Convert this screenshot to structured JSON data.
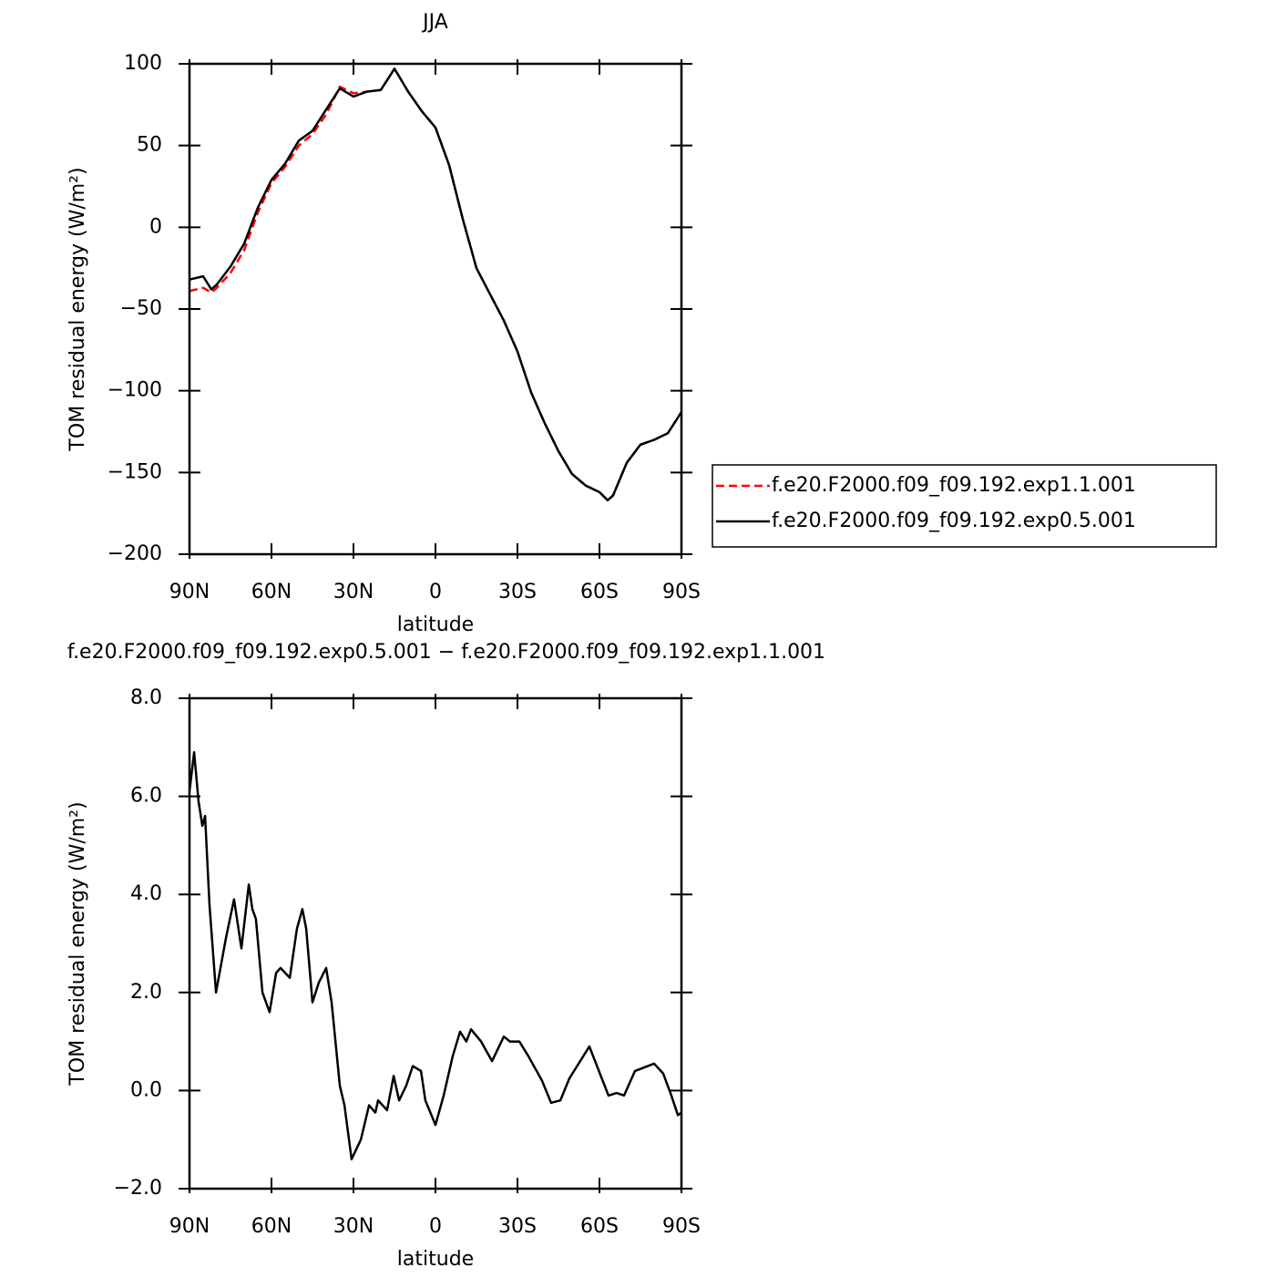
{
  "chart_data": [
    {
      "type": "line",
      "title": "JJA",
      "x_label": "latitude",
      "y_label": "TOM residual energy (W/m²)",
      "x": [
        90,
        85,
        82,
        80,
        75,
        70,
        65,
        60,
        55,
        50,
        45,
        40,
        35,
        30,
        25,
        20,
        15,
        10,
        5,
        0,
        -5,
        -10,
        -15,
        -20,
        -25,
        -30,
        -35,
        -40,
        -45,
        -50,
        -55,
        -60,
        -63,
        -65,
        -70,
        -75,
        -80,
        -85,
        -90
      ],
      "series": [
        {
          "name": "f.e20.F2000.f09_f09.192.exp1.1.001",
          "color": "#ff0000",
          "line_style": "dashed",
          "values": [
            -39,
            -37,
            -40,
            -37,
            -28,
            -14,
            9,
            27,
            37,
            50,
            57,
            69,
            86,
            82,
            83,
            84,
            97,
            83,
            71,
            61,
            38,
            5,
            -25,
            -41,
            -57,
            -76,
            -101,
            -120,
            -137,
            -151,
            -158,
            -162,
            -167,
            -164,
            -144,
            -133,
            -130,
            -126,
            -113
          ]
        },
        {
          "name": "f.e20.F2000.f09_f09.192.exp0.5.001",
          "color": "#000000",
          "line_style": "solid",
          "values": [
            -32,
            -30,
            -38,
            -35,
            -24,
            -10,
            12,
            29,
            39,
            53,
            59,
            72,
            85,
            80,
            83,
            84,
            97,
            83,
            71,
            61,
            38,
            5,
            -25,
            -41,
            -57,
            -76,
            -101,
            -120,
            -137,
            -151,
            -158,
            -162,
            -167,
            -164,
            -144,
            -133,
            -130,
            -126,
            -113
          ]
        }
      ],
      "xlim": [
        90,
        -90
      ],
      "xticks": [
        {
          "value": 90,
          "label": "90N"
        },
        {
          "value": 60,
          "label": "60N"
        },
        {
          "value": 30,
          "label": "30N"
        },
        0,
        {
          "value": -30,
          "label": "30S"
        },
        {
          "value": -60,
          "label": "60S"
        },
        {
          "value": -90,
          "label": "90S"
        }
      ],
      "ylim": [
        -200,
        100
      ],
      "yticks": [
        {
          "value": -200,
          "label": "−200"
        },
        {
          "value": -150,
          "label": "−150"
        },
        {
          "value": -100,
          "label": "−100"
        },
        {
          "value": -50,
          "label": "−50"
        },
        0,
        50,
        100
      ],
      "legend": "right"
    },
    {
      "type": "line",
      "title": "f.e20.F2000.f09_f09.192.exp0.5.001 − f.e20.F2000.f09_f09.192.exp1.1.001",
      "x_label": "latitude",
      "y_label": "TOM residual energy (W/m²)",
      "x": [
        90,
        88.3,
        86.7,
        85.3,
        84.3,
        82.7,
        80.3,
        76.7,
        73.7,
        71,
        68.3,
        67,
        65.7,
        63.3,
        60.7,
        58.3,
        56.7,
        53.3,
        50.7,
        48.7,
        47.3,
        45,
        42.7,
        40,
        38,
        35,
        33.3,
        30.7,
        27.3,
        24.3,
        22,
        21,
        17.7,
        15.3,
        13.3,
        10.7,
        8.3,
        5.3,
        3.7,
        0,
        -3,
        -6.3,
        -9,
        -11.3,
        -13,
        -16.7,
        -20.7,
        -25,
        -27.3,
        -30.7,
        -34,
        -39,
        -42.3,
        -45.7,
        -49,
        -56.3,
        -63.3,
        -66.3,
        -69,
        -73,
        -80,
        -83.3,
        -86.3,
        -88.7,
        -90
      ],
      "series": [
        {
          "color": "#000000",
          "line_style": "solid",
          "values": [
            6.1,
            6.9,
            5.9,
            5.4,
            5.6,
            3.8,
            2.0,
            3.1,
            3.9,
            2.9,
            4.2,
            3.7,
            3.5,
            2.0,
            1.6,
            2.4,
            2.5,
            2.3,
            3.3,
            3.7,
            3.3,
            1.8,
            2.2,
            2.5,
            1.8,
            0.1,
            -0.3,
            -1.4,
            -1.0,
            -0.3,
            -0.45,
            -0.2,
            -0.4,
            0.3,
            -0.2,
            0.1,
            0.5,
            0.4,
            -0.2,
            -0.7,
            -0.1,
            0.7,
            1.2,
            1.0,
            1.25,
            1.0,
            0.6,
            1.1,
            1.0,
            1.0,
            0.7,
            0.2,
            -0.25,
            -0.2,
            0.25,
            0.9,
            -0.1,
            -0.05,
            -0.1,
            0.4,
            0.55,
            0.35,
            -0.1,
            -0.5,
            -0.45
          ]
        }
      ],
      "xlim": [
        90,
        -90
      ],
      "xticks": [
        {
          "value": 90,
          "label": "90N"
        },
        {
          "value": 60,
          "label": "60N"
        },
        {
          "value": 30,
          "label": "30N"
        },
        0,
        {
          "value": -30,
          "label": "30S"
        },
        {
          "value": -60,
          "label": "60S"
        },
        {
          "value": -90,
          "label": "90S"
        }
      ],
      "ylim": [
        -2,
        8
      ],
      "yticks": [
        {
          "value": -2,
          "label": "−2.0"
        },
        {
          "value": 0,
          "label": "0.0"
        },
        {
          "value": 2,
          "label": "2.0"
        },
        {
          "value": 4,
          "label": "4.0"
        },
        {
          "value": 6,
          "label": "6.0"
        },
        {
          "value": 8,
          "label": "8.0"
        }
      ]
    }
  ]
}
